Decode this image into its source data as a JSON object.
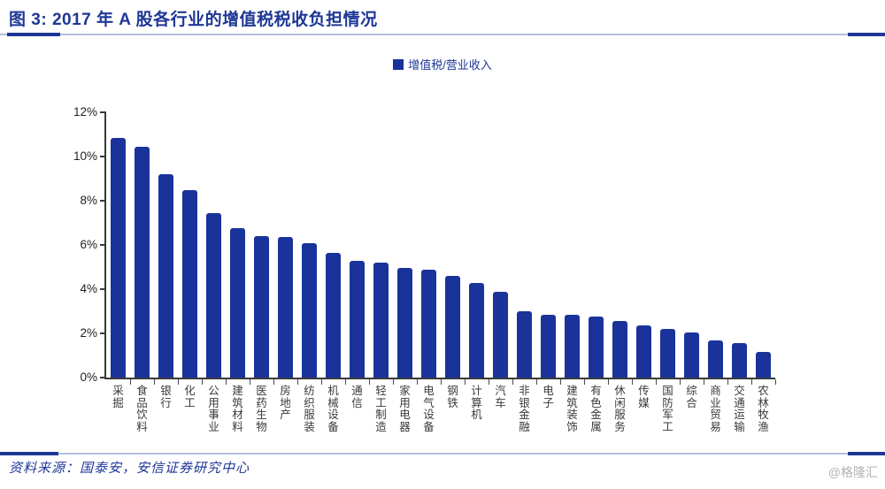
{
  "header": {
    "title": "图 3: 2017 年 A 股各行业的增值税税收负担情况"
  },
  "legend": {
    "label": "增值税/营业收入",
    "swatch_color": "#1a339b"
  },
  "footer": {
    "source": "资料来源：国泰安，安信证券研究中心",
    "watermark": "@格隆汇"
  },
  "colors": {
    "bar": "#1a339b",
    "navy_text": "#1e3796",
    "axis": "#3a3a3a",
    "light_rule": "#b3c0dd"
  },
  "chart_data": {
    "type": "bar",
    "title": "2017 年 A 股各行业的增值税税收负担情况",
    "legend": [
      "增值税/营业收入"
    ],
    "legend_position": "top",
    "grid": false,
    "xlabel": "",
    "ylabel": "",
    "ylim": [
      0,
      12
    ],
    "ytick_step": 2,
    "yticks": [
      "0%",
      "2%",
      "4%",
      "6%",
      "8%",
      "10%",
      "12%"
    ],
    "unit": "%",
    "categories": [
      "采掘",
      "食品饮料",
      "银行",
      "化工",
      "公用事业",
      "建筑材料",
      "医药生物",
      "房地产",
      "纺织服装",
      "机械设备",
      "通信",
      "轻工制造",
      "家用电器",
      "电气设备",
      "钢铁",
      "计算机",
      "汽车",
      "非银金融",
      "电子",
      "建筑装饰",
      "有色金属",
      "休闲服务",
      "传媒",
      "国防军工",
      "综合",
      "商业贸易",
      "交通运输",
      "农林牧渔"
    ],
    "values": [
      10.85,
      10.45,
      9.2,
      8.5,
      7.45,
      6.75,
      6.4,
      6.35,
      6.1,
      5.65,
      5.3,
      5.2,
      4.95,
      4.9,
      4.6,
      4.3,
      3.9,
      3.0,
      2.85,
      2.85,
      2.75,
      2.55,
      2.35,
      2.2,
      2.05,
      1.7,
      1.55,
      1.15
    ]
  }
}
